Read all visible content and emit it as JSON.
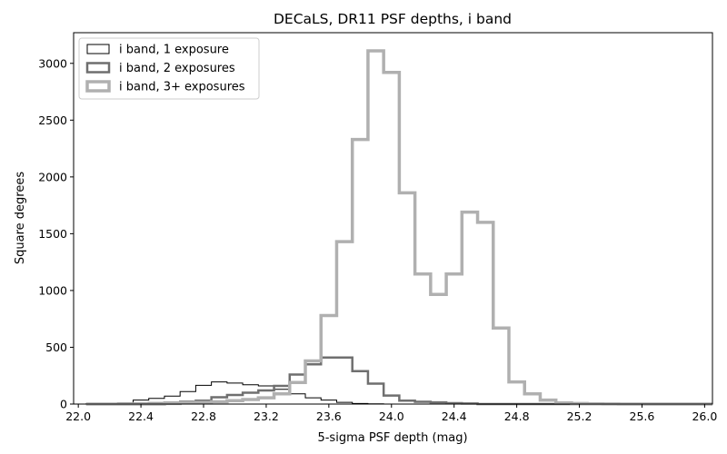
{
  "chart_data": {
    "type": "histogram",
    "title": "DECaLS, DR11 PSF depths, i band",
    "xlabel": "5-sigma PSF depth (mag)",
    "ylabel": "Square degrees",
    "xlim": [
      21.97,
      26.05
    ],
    "ylim": [
      0,
      3270
    ],
    "xticks": [
      "22.0",
      "22.4",
      "22.8",
      "23.2",
      "23.6",
      "24.0",
      "24.4",
      "24.8",
      "25.2",
      "25.6",
      "26.0"
    ],
    "yticks": [
      "0",
      "500",
      "1000",
      "1500",
      "2000",
      "2500",
      "3000"
    ],
    "bin_edges": [
      22.05,
      22.15,
      22.25,
      22.35,
      22.45,
      22.55,
      22.65,
      22.75,
      22.85,
      22.95,
      23.05,
      23.15,
      23.25,
      23.35,
      23.45,
      23.55,
      23.65,
      23.75,
      23.85,
      23.95,
      24.05,
      24.15,
      24.25,
      24.35,
      24.45,
      24.55,
      24.65,
      24.75,
      24.85,
      24.95,
      25.05,
      25.15,
      25.25,
      25.35,
      25.45,
      25.55,
      25.65,
      25.75,
      25.85,
      25.95,
      26.05
    ],
    "legend_position": "upper-left",
    "series": [
      {
        "name": "i band, 1 exposure",
        "color": "#000000",
        "linewidth": 1,
        "values": [
          2,
          5,
          10,
          35,
          50,
          70,
          110,
          165,
          195,
          185,
          170,
          160,
          130,
          90,
          55,
          35,
          15,
          5,
          2,
          0,
          0,
          0,
          0,
          0,
          0,
          0,
          0,
          0,
          0,
          0,
          0,
          0,
          0,
          0,
          0,
          0,
          0,
          0,
          0,
          0
        ]
      },
      {
        "name": "i band, 2 exposures",
        "color": "#6f6f6f",
        "linewidth": 2.5,
        "values": [
          0,
          0,
          2,
          5,
          8,
          12,
          20,
          30,
          60,
          80,
          100,
          120,
          160,
          260,
          350,
          410,
          410,
          290,
          180,
          75,
          30,
          20,
          15,
          8,
          5,
          0,
          0,
          0,
          0,
          0,
          0,
          0,
          0,
          0,
          0,
          0,
          0,
          0,
          0,
          0
        ]
      },
      {
        "name": "i band, 3+ exposures",
        "color": "#b0b0b0",
        "linewidth": 3.5,
        "values": [
          0,
          0,
          0,
          0,
          0,
          5,
          10,
          15,
          20,
          30,
          40,
          55,
          90,
          190,
          380,
          780,
          1430,
          2330,
          3110,
          2920,
          1860,
          1145,
          965,
          1145,
          1690,
          1600,
          670,
          195,
          90,
          35,
          10,
          5,
          2,
          1,
          0,
          0,
          0,
          0,
          0,
          0
        ]
      }
    ]
  }
}
